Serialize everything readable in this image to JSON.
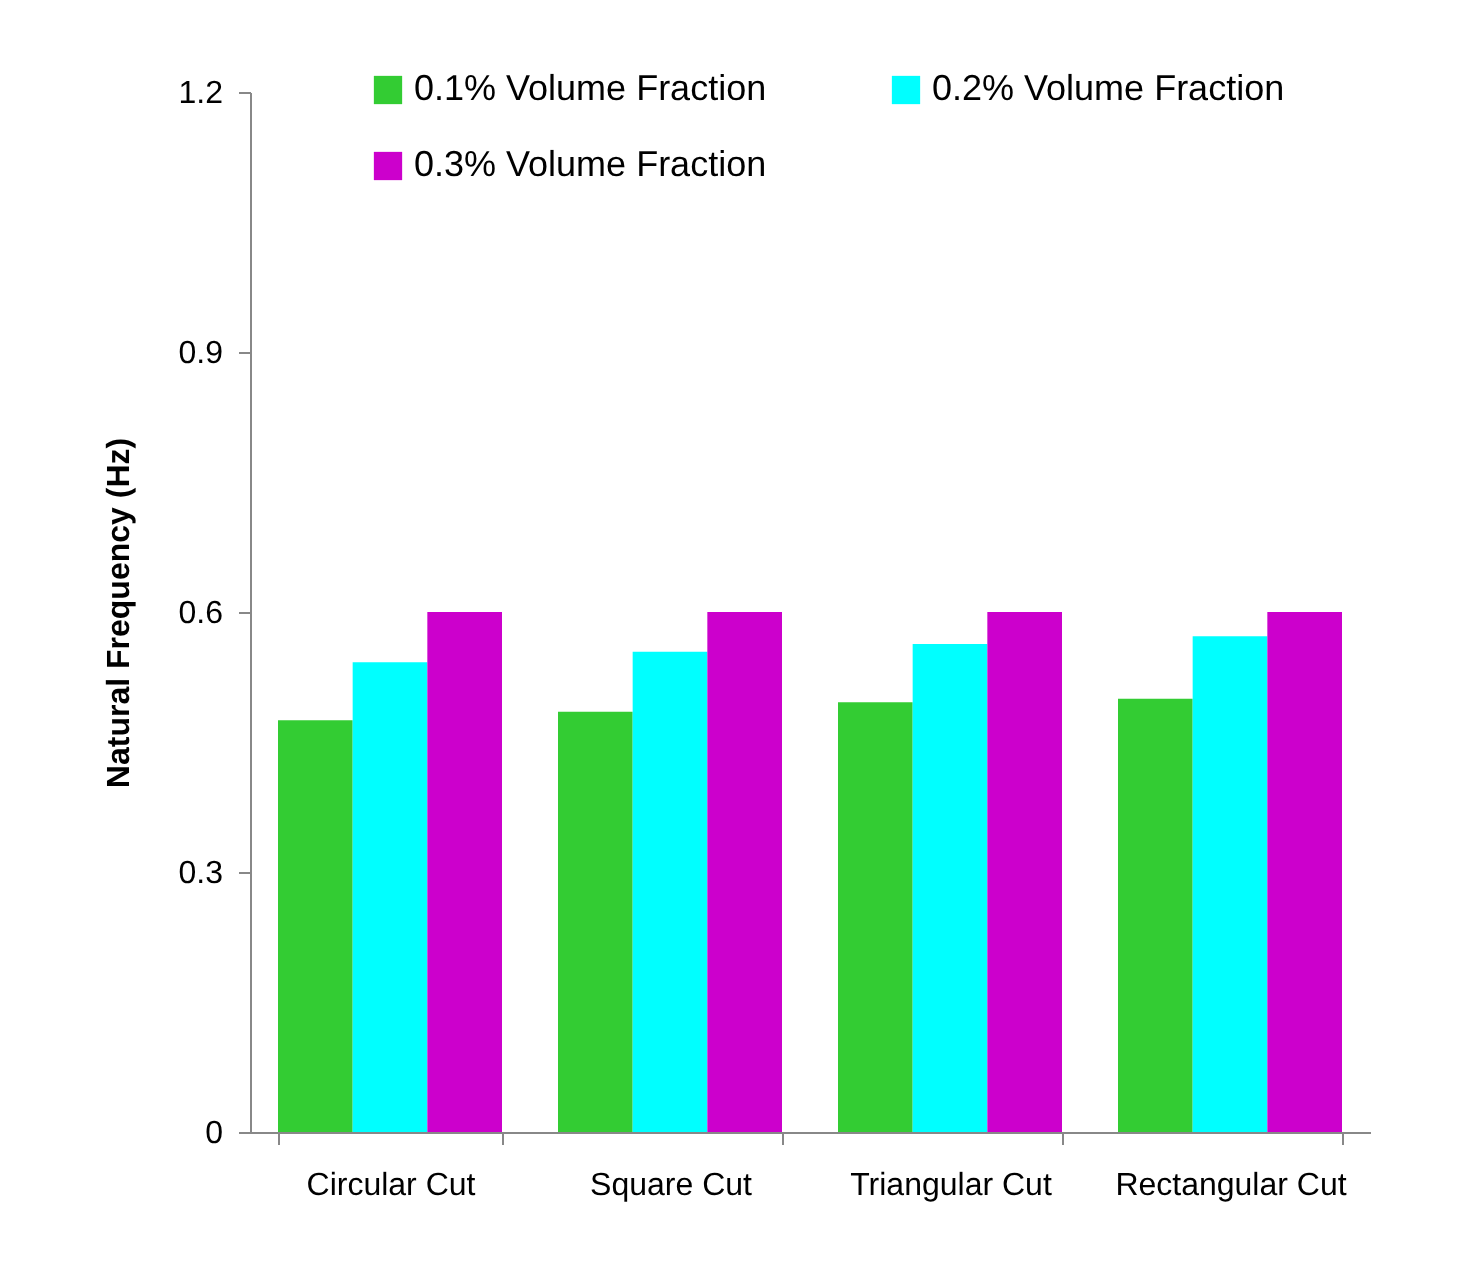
{
  "chart_data": {
    "type": "bar",
    "ylabel": "Natural Frequency (Hz)",
    "categories": [
      "Circular Cut",
      "Square Cut",
      "Triangular Cut",
      "Rectangular Cut"
    ],
    "series": [
      {
        "name": "0.1% Volume Fraction",
        "color": "#33cc33",
        "values": [
          0.475,
          0.485,
          0.496,
          0.5
        ]
      },
      {
        "name": "0.2% Volume Fraction",
        "color": "#00ffff",
        "values": [
          0.542,
          0.554,
          0.563,
          0.572
        ]
      },
      {
        "name": "0.3% Volume Fraction",
        "color": "#cc00cc",
        "values": [
          0.6,
          0.6,
          0.6,
          0.6
        ]
      }
    ],
    "ylim": [
      0,
      1.2
    ],
    "yticks": [
      0,
      0.3,
      0.6,
      0.9,
      1.2
    ],
    "grid": false,
    "legend": "top"
  }
}
